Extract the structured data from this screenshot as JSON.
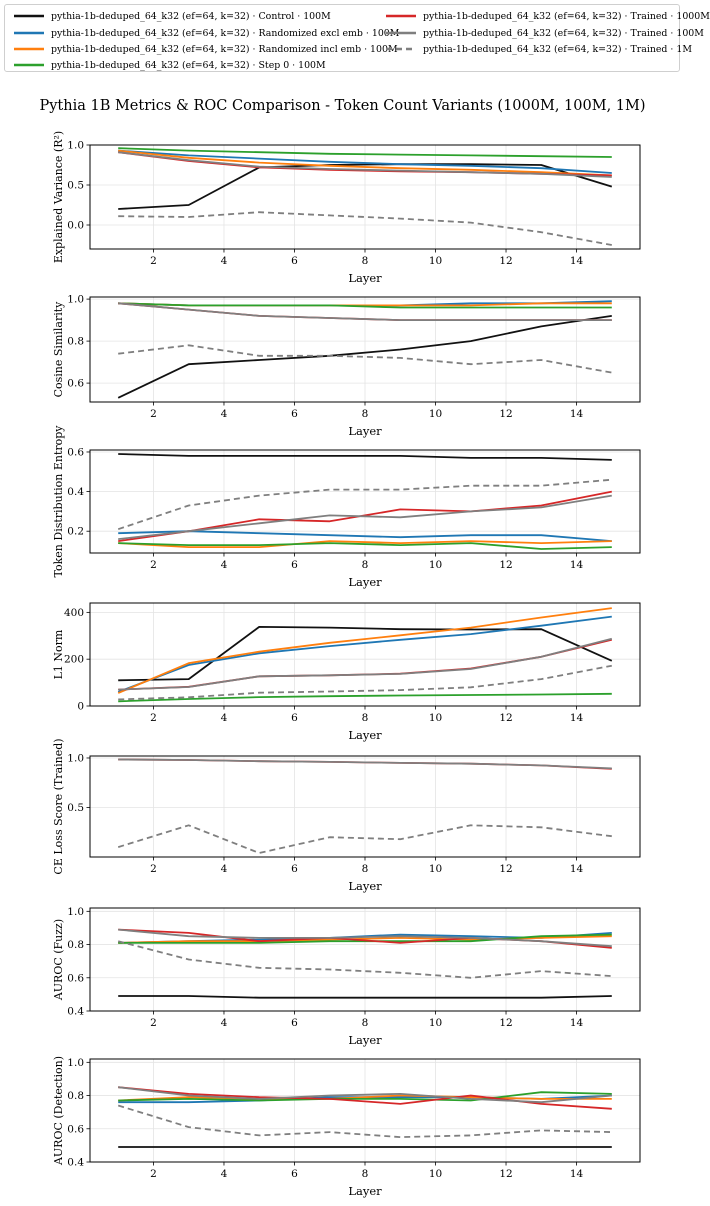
{
  "title": "Pythia 1B Metrics & ROC Comparison - Token Count Variants (1000M, 100M, 1M)",
  "legend": [
    {
      "label": "pythia-1b-deduped_64_k32 (ef=64, k=32) · Control · 100M",
      "color": "#111111",
      "dash": false
    },
    {
      "label": "pythia-1b-deduped_64_k32 (ef=64, k=32) · Randomized excl emb · 100M",
      "color": "#1f77b4",
      "dash": false
    },
    {
      "label": "pythia-1b-deduped_64_k32 (ef=64, k=32) · Randomized incl emb · 100M",
      "color": "#ff7f0e",
      "dash": false
    },
    {
      "label": "pythia-1b-deduped_64_k32 (ef=64, k=32) · Step 0 · 100M",
      "color": "#2ca02c",
      "dash": false
    },
    {
      "label": "pythia-1b-deduped_64_k32 (ef=64, k=32) · Trained · 1000M",
      "color": "#d62728",
      "dash": false
    },
    {
      "label": "pythia-1b-deduped_64_k32 (ef=64, k=32) · Trained · 100M",
      "color": "#7f7f7f",
      "dash": false
    },
    {
      "label": "pythia-1b-deduped_64_k32 (ef=64, k=32) · Trained · 1M",
      "color": "#7f7f7f",
      "dash": true
    }
  ],
  "chart_data": [
    {
      "type": "line",
      "ylabel": "Explained Variance (R²)",
      "xlabel": "Layer",
      "x": [
        1,
        3,
        5,
        7,
        9,
        11,
        13,
        15
      ],
      "xlim": [
        0.2,
        15.8
      ],
      "ylim": [
        -0.3,
        1.0
      ],
      "xticks": [
        2,
        4,
        6,
        8,
        10,
        12,
        14
      ],
      "yticks": [
        0.0,
        0.5,
        1.0
      ],
      "series": [
        {
          "name": "Control · 100M",
          "values": [
            0.2,
            0.25,
            0.72,
            0.75,
            0.76,
            0.76,
            0.75,
            0.48
          ]
        },
        {
          "name": "Randomized excl emb · 100M",
          "values": [
            0.93,
            0.87,
            0.83,
            0.79,
            0.76,
            0.74,
            0.71,
            0.65
          ]
        },
        {
          "name": "Randomized incl emb · 100M",
          "values": [
            0.93,
            0.84,
            0.78,
            0.74,
            0.71,
            0.69,
            0.66,
            0.62
          ]
        },
        {
          "name": "Step 0 · 100M",
          "values": [
            0.96,
            0.93,
            0.91,
            0.89,
            0.88,
            0.87,
            0.86,
            0.85
          ]
        },
        {
          "name": "Trained · 1000M",
          "values": [
            0.91,
            0.8,
            0.72,
            0.69,
            0.67,
            0.66,
            0.64,
            0.62
          ]
        },
        {
          "name": "Trained · 100M",
          "values": [
            0.91,
            0.81,
            0.73,
            0.7,
            0.68,
            0.66,
            0.64,
            0.6
          ]
        },
        {
          "name": "Trained · 1M",
          "values": [
            0.11,
            0.1,
            0.16,
            0.12,
            0.08,
            0.03,
            -0.09,
            -0.25
          ]
        }
      ]
    },
    {
      "type": "line",
      "ylabel": "Cosine Similarity",
      "xlabel": "Layer",
      "x": [
        1,
        3,
        5,
        7,
        9,
        11,
        13,
        15
      ],
      "xlim": [
        0.2,
        15.8
      ],
      "ylim": [
        0.51,
        1.01
      ],
      "xticks": [
        2,
        4,
        6,
        8,
        10,
        12,
        14
      ],
      "yticks": [
        0.6,
        0.8,
        1.0
      ],
      "series": [
        {
          "name": "Control · 100M",
          "values": [
            0.53,
            0.69,
            0.71,
            0.73,
            0.76,
            0.8,
            0.87,
            0.92
          ]
        },
        {
          "name": "Randomized excl emb · 100M",
          "values": [
            0.98,
            0.97,
            0.97,
            0.97,
            0.97,
            0.98,
            0.98,
            0.99
          ]
        },
        {
          "name": "Randomized incl emb · 100M",
          "values": [
            0.98,
            0.97,
            0.97,
            0.97,
            0.97,
            0.97,
            0.98,
            0.98
          ]
        },
        {
          "name": "Step 0 · 100M",
          "values": [
            0.98,
            0.97,
            0.97,
            0.97,
            0.96,
            0.96,
            0.96,
            0.96
          ]
        },
        {
          "name": "Trained · 1000M",
          "values": [
            0.98,
            0.95,
            0.92,
            0.91,
            0.9,
            0.9,
            0.9,
            0.9
          ]
        },
        {
          "name": "Trained · 100M",
          "values": [
            0.98,
            0.95,
            0.92,
            0.91,
            0.9,
            0.9,
            0.9,
            0.9
          ]
        },
        {
          "name": "Trained · 1M",
          "values": [
            0.74,
            0.78,
            0.73,
            0.73,
            0.72,
            0.69,
            0.71,
            0.65
          ]
        }
      ]
    },
    {
      "type": "line",
      "ylabel": "Token Distribution Entropy",
      "xlabel": "Layer",
      "x": [
        1,
        3,
        5,
        7,
        9,
        11,
        13,
        15
      ],
      "xlim": [
        0.2,
        15.8
      ],
      "ylim": [
        0.09,
        0.61
      ],
      "xticks": [
        2,
        4,
        6,
        8,
        10,
        12,
        14
      ],
      "yticks": [
        0.2,
        0.4,
        0.6
      ],
      "series": [
        {
          "name": "Control · 100M",
          "values": [
            0.59,
            0.58,
            0.58,
            0.58,
            0.58,
            0.57,
            0.57,
            0.56
          ]
        },
        {
          "name": "Randomized excl emb · 100M",
          "values": [
            0.19,
            0.2,
            0.19,
            0.18,
            0.17,
            0.18,
            0.18,
            0.15
          ]
        },
        {
          "name": "Randomized incl emb · 100M",
          "values": [
            0.14,
            0.12,
            0.12,
            0.15,
            0.14,
            0.15,
            0.14,
            0.15
          ]
        },
        {
          "name": "Step 0 · 100M",
          "values": [
            0.14,
            0.13,
            0.13,
            0.14,
            0.13,
            0.14,
            0.11,
            0.12
          ]
        },
        {
          "name": "Trained · 1000M",
          "values": [
            0.15,
            0.2,
            0.26,
            0.25,
            0.31,
            0.3,
            0.33,
            0.4
          ]
        },
        {
          "name": "Trained · 100M",
          "values": [
            0.16,
            0.2,
            0.24,
            0.28,
            0.27,
            0.3,
            0.32,
            0.38
          ]
        },
        {
          "name": "Trained · 1M",
          "values": [
            0.21,
            0.33,
            0.38,
            0.41,
            0.41,
            0.43,
            0.43,
            0.46
          ]
        }
      ]
    },
    {
      "type": "line",
      "ylabel": "L1 Norm",
      "xlabel": "Layer",
      "x": [
        1,
        3,
        5,
        7,
        9,
        11,
        13,
        15
      ],
      "xlim": [
        0.2,
        15.8
      ],
      "ylim": [
        0,
        440
      ],
      "xticks": [
        2,
        4,
        6,
        8,
        10,
        12,
        14
      ],
      "yticks": [
        0,
        200,
        400
      ],
      "series": [
        {
          "name": "Control · 100M",
          "values": [
            110,
            115,
            338,
            335,
            328,
            327,
            328,
            193
          ]
        },
        {
          "name": "Randomized excl emb · 100M",
          "values": [
            60,
            175,
            225,
            256,
            283,
            307,
            343,
            382
          ]
        },
        {
          "name": "Randomized incl emb · 100M",
          "values": [
            55,
            183,
            232,
            270,
            302,
            335,
            378,
            418
          ]
        },
        {
          "name": "Step 0 · 100M",
          "values": [
            20,
            30,
            38,
            42,
            45,
            47,
            49,
            52
          ]
        },
        {
          "name": "Trained · 1000M",
          "values": [
            70,
            82,
            127,
            131,
            138,
            160,
            210,
            283
          ]
        },
        {
          "name": "Trained · 100M",
          "values": [
            70,
            81,
            127,
            131,
            137,
            158,
            210,
            287
          ]
        },
        {
          "name": "Trained · 1M",
          "values": [
            28,
            37,
            57,
            62,
            68,
            80,
            115,
            172
          ]
        }
      ]
    },
    {
      "type": "line",
      "ylabel": "CE Loss Score (Trained)",
      "xlabel": "Layer",
      "x": [
        1,
        3,
        5,
        7,
        9,
        11,
        13,
        15
      ],
      "xlim": [
        0.2,
        15.8
      ],
      "ylim": [
        0.0,
        1.02
      ],
      "xticks": [
        2,
        4,
        6,
        8,
        10,
        12,
        14
      ],
      "yticks": [
        0.5,
        1.0
      ],
      "series": [
        {
          "name": "Trained · 1000M",
          "values": [
            0.985,
            0.98,
            0.967,
            0.96,
            0.95,
            0.942,
            0.925,
            0.89
          ]
        },
        {
          "name": "Trained · 100M",
          "values": [
            0.985,
            0.98,
            0.967,
            0.96,
            0.95,
            0.942,
            0.925,
            0.895
          ]
        },
        {
          "name": "Trained · 1M",
          "values": [
            0.1,
            0.32,
            0.04,
            0.2,
            0.18,
            0.32,
            0.3,
            0.21
          ]
        }
      ]
    },
    {
      "type": "line",
      "ylabel": "AUROC (Fuzz)",
      "xlabel": "Layer",
      "x": [
        1,
        3,
        5,
        7,
        9,
        11,
        13,
        15
      ],
      "xlim": [
        0.2,
        15.8
      ],
      "ylim": [
        0.4,
        1.02
      ],
      "xticks": [
        2,
        4,
        6,
        8,
        10,
        12,
        14
      ],
      "yticks": [
        0.4,
        0.6,
        0.8,
        1.0
      ],
      "series": [
        {
          "name": "Control · 100M",
          "values": [
            0.49,
            0.49,
            0.48,
            0.48,
            0.48,
            0.48,
            0.48,
            0.49
          ]
        },
        {
          "name": "Randomized excl emb · 100M",
          "values": [
            0.81,
            0.82,
            0.83,
            0.84,
            0.86,
            0.85,
            0.84,
            0.87
          ]
        },
        {
          "name": "Randomized incl emb · 100M",
          "values": [
            0.81,
            0.82,
            0.82,
            0.83,
            0.84,
            0.83,
            0.84,
            0.85
          ]
        },
        {
          "name": "Step 0 · 100M",
          "values": [
            0.81,
            0.81,
            0.81,
            0.82,
            0.82,
            0.82,
            0.85,
            0.86
          ]
        },
        {
          "name": "Trained · 1000M",
          "values": [
            0.89,
            0.87,
            0.82,
            0.84,
            0.81,
            0.84,
            0.82,
            0.78
          ]
        },
        {
          "name": "Trained · 100M",
          "values": [
            0.89,
            0.85,
            0.84,
            0.84,
            0.85,
            0.84,
            0.82,
            0.79
          ]
        },
        {
          "name": "Trained · 1M",
          "values": [
            0.82,
            0.71,
            0.66,
            0.65,
            0.63,
            0.6,
            0.64,
            0.61
          ]
        }
      ]
    },
    {
      "type": "line",
      "ylabel": "AUROC (Detection)",
      "xlabel": "Layer",
      "x": [
        1,
        3,
        5,
        7,
        9,
        11,
        13,
        15
      ],
      "xlim": [
        0.2,
        15.8
      ],
      "ylim": [
        0.4,
        1.02
      ],
      "xticks": [
        2,
        4,
        6,
        8,
        10,
        12,
        14
      ],
      "yticks": [
        0.4,
        0.6,
        0.8,
        1.0
      ],
      "series": [
        {
          "name": "Control · 100M",
          "values": [
            0.49,
            0.49,
            0.49,
            0.49,
            0.49,
            0.49,
            0.49,
            0.49
          ]
        },
        {
          "name": "Randomized excl emb · 100M",
          "values": [
            0.76,
            0.76,
            0.77,
            0.79,
            0.79,
            0.79,
            0.78,
            0.8
          ]
        },
        {
          "name": "Randomized incl emb · 100M",
          "values": [
            0.77,
            0.79,
            0.78,
            0.78,
            0.8,
            0.79,
            0.78,
            0.78
          ]
        },
        {
          "name": "Step 0 · 100M",
          "values": [
            0.77,
            0.78,
            0.77,
            0.78,
            0.78,
            0.77,
            0.82,
            0.81
          ]
        },
        {
          "name": "Trained · 1000M",
          "values": [
            0.85,
            0.81,
            0.79,
            0.78,
            0.75,
            0.8,
            0.75,
            0.72
          ]
        },
        {
          "name": "Trained · 100M",
          "values": [
            0.85,
            0.8,
            0.78,
            0.8,
            0.81,
            0.78,
            0.76,
            0.8
          ]
        },
        {
          "name": "Trained · 1M",
          "values": [
            0.74,
            0.61,
            0.56,
            0.58,
            0.55,
            0.56,
            0.59,
            0.58
          ]
        }
      ]
    }
  ]
}
